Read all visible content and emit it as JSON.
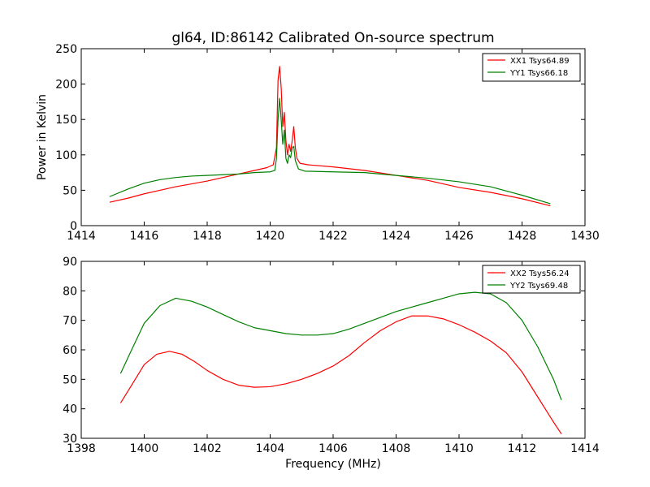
{
  "chart_data": [
    {
      "type": "line",
      "title": "gl64, ID:86142 Calibrated On-source spectrum",
      "xlabel": "",
      "ylabel": "Power in Kelvin",
      "xlim": [
        1414,
        1430
      ],
      "ylim": [
        0,
        250
      ],
      "xticks": [
        1414,
        1416,
        1418,
        1420,
        1422,
        1424,
        1426,
        1428,
        1430
      ],
      "yticks": [
        0,
        50,
        100,
        150,
        200,
        250
      ],
      "legend_position": "top-right",
      "series": [
        {
          "name": "XX1 Tsys64.89",
          "color": "#ff0000",
          "points": [
            [
              1414.9,
              33
            ],
            [
              1415.5,
              39
            ],
            [
              1416,
              45
            ],
            [
              1416.5,
              50
            ],
            [
              1417,
              55
            ],
            [
              1417.5,
              59
            ],
            [
              1418,
              63
            ],
            [
              1418.5,
              68
            ],
            [
              1419,
              73
            ],
            [
              1419.5,
              78
            ],
            [
              1419.9,
              82
            ],
            [
              1420.1,
              86
            ],
            [
              1420.2,
              110
            ],
            [
              1420.25,
              205
            ],
            [
              1420.3,
              225
            ],
            [
              1420.35,
              195
            ],
            [
              1420.4,
              140
            ],
            [
              1420.45,
              160
            ],
            [
              1420.5,
              120
            ],
            [
              1420.55,
              100
            ],
            [
              1420.6,
              115
            ],
            [
              1420.65,
              105
            ],
            [
              1420.7,
              120
            ],
            [
              1420.75,
              140
            ],
            [
              1420.8,
              110
            ],
            [
              1420.85,
              95
            ],
            [
              1420.95,
              88
            ],
            [
              1421.2,
              86
            ],
            [
              1422,
              83
            ],
            [
              1423,
              78
            ],
            [
              1424,
              71
            ],
            [
              1425,
              64
            ],
            [
              1426,
              54
            ],
            [
              1427,
              47
            ],
            [
              1428,
              38
            ],
            [
              1428.9,
              28
            ]
          ]
        },
        {
          "name": "YY1 Tsys66.18",
          "color": "#008000",
          "points": [
            [
              1414.9,
              41
            ],
            [
              1415.5,
              52
            ],
            [
              1416,
              60
            ],
            [
              1416.5,
              65
            ],
            [
              1417,
              68
            ],
            [
              1417.5,
              70
            ],
            [
              1418,
              71
            ],
            [
              1418.5,
              72
            ],
            [
              1419,
              73
            ],
            [
              1419.5,
              75
            ],
            [
              1420,
              76
            ],
            [
              1420.15,
              78
            ],
            [
              1420.2,
              95
            ],
            [
              1420.25,
              150
            ],
            [
              1420.3,
              180
            ],
            [
              1420.35,
              150
            ],
            [
              1420.4,
              115
            ],
            [
              1420.45,
              135
            ],
            [
              1420.5,
              95
            ],
            [
              1420.55,
              88
            ],
            [
              1420.6,
              100
            ],
            [
              1420.65,
              96
            ],
            [
              1420.7,
              110
            ],
            [
              1420.75,
              112
            ],
            [
              1420.8,
              92
            ],
            [
              1420.9,
              80
            ],
            [
              1421.1,
              77
            ],
            [
              1422,
              76
            ],
            [
              1423,
              75
            ],
            [
              1424,
              71
            ],
            [
              1425,
              67
            ],
            [
              1426,
              62
            ],
            [
              1427,
              55
            ],
            [
              1428,
              43
            ],
            [
              1428.9,
              31
            ]
          ]
        }
      ]
    },
    {
      "type": "line",
      "title": "",
      "xlabel": "Frequency (MHz)",
      "ylabel": "",
      "xlim": [
        1398,
        1414
      ],
      "ylim": [
        30,
        90
      ],
      "xticks": [
        1398,
        1400,
        1402,
        1404,
        1406,
        1408,
        1410,
        1412,
        1414
      ],
      "yticks": [
        30,
        40,
        50,
        60,
        70,
        80,
        90
      ],
      "legend_position": "top-right",
      "series": [
        {
          "name": "XX2 Tsys56.24",
          "color": "#ff0000",
          "points": [
            [
              1399.25,
              42
            ],
            [
              1399.6,
              48
            ],
            [
              1400,
              55
            ],
            [
              1400.4,
              58.5
            ],
            [
              1400.8,
              59.5
            ],
            [
              1401.2,
              58.5
            ],
            [
              1401.6,
              56
            ],
            [
              1402,
              53
            ],
            [
              1402.5,
              50
            ],
            [
              1403,
              48
            ],
            [
              1403.5,
              47.3
            ],
            [
              1404,
              47.5
            ],
            [
              1404.5,
              48.5
            ],
            [
              1405,
              50
            ],
            [
              1405.5,
              52
            ],
            [
              1406,
              54.5
            ],
            [
              1406.5,
              58
            ],
            [
              1407,
              62.5
            ],
            [
              1407.5,
              66.5
            ],
            [
              1408,
              69.5
            ],
            [
              1408.5,
              71.5
            ],
            [
              1409,
              71.5
            ],
            [
              1409.5,
              70.5
            ],
            [
              1410,
              68.5
            ],
            [
              1410.5,
              66
            ],
            [
              1411,
              63
            ],
            [
              1411.5,
              59
            ],
            [
              1412,
              52.5
            ],
            [
              1412.5,
              44
            ],
            [
              1413,
              35.5
            ],
            [
              1413.25,
              31.5
            ]
          ]
        },
        {
          "name": "YY2 Tsys69.48",
          "color": "#008000",
          "points": [
            [
              1399.25,
              52
            ],
            [
              1399.6,
              60
            ],
            [
              1400,
              69
            ],
            [
              1400.5,
              75
            ],
            [
              1401,
              77.5
            ],
            [
              1401.5,
              76.5
            ],
            [
              1402,
              74.5
            ],
            [
              1402.5,
              72
            ],
            [
              1403,
              69.5
            ],
            [
              1403.5,
              67.5
            ],
            [
              1404,
              66.5
            ],
            [
              1404.5,
              65.5
            ],
            [
              1405,
              65
            ],
            [
              1405.5,
              65
            ],
            [
              1406,
              65.5
            ],
            [
              1406.5,
              67
            ],
            [
              1407,
              69
            ],
            [
              1407.5,
              71
            ],
            [
              1408,
              73
            ],
            [
              1408.5,
              74.5
            ],
            [
              1409,
              76
            ],
            [
              1409.5,
              77.5
            ],
            [
              1410,
              79
            ],
            [
              1410.5,
              79.5
            ],
            [
              1411,
              79
            ],
            [
              1411.5,
              76
            ],
            [
              1412,
              70
            ],
            [
              1412.5,
              61
            ],
            [
              1413,
              50
            ],
            [
              1413.25,
              43
            ]
          ]
        }
      ]
    }
  ]
}
